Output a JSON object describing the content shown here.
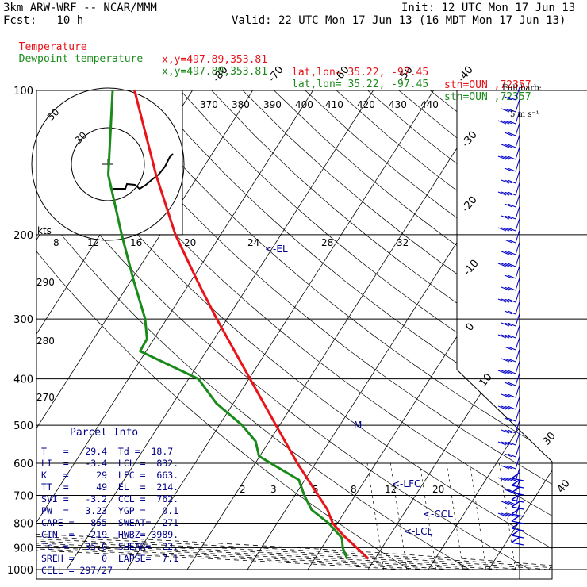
{
  "header": {
    "model": "3km ARW-WRF -- NCAR/MMM",
    "init": "Init: 12 UTC Mon 17 Jun 13",
    "fcst": "Fcst:   10 h",
    "valid": "Valid: 22 UTC Mon 17 Jun 13 (16 MDT Mon 17 Jun 13)",
    "line_temp": {
      "label": "Temperature",
      "xy": "x,y=497.89,353.81",
      "latlon": "lat,lon= 35.22, -97.45",
      "stn": "stn=OUN ,72357"
    },
    "line_dew": {
      "label": "Dewpoint temperature",
      "xy": "x,y=497.89,353.81",
      "latlon": "lat,lon= 35.22, -97.45",
      "stn": "stn=OUN ,72357"
    },
    "barb_note_1": "Full barb:",
    "barb_note_2": "5 m s⁻¹"
  },
  "colors": {
    "temperature": "#e8141a",
    "dewpoint": "#1a8a1a",
    "parcel_text": "#00008b",
    "barb": "#0000cc"
  },
  "chart_data": {
    "type": "line",
    "pressure_levels": [
      100,
      200,
      300,
      400,
      500,
      600,
      700,
      800,
      900,
      1000
    ],
    "pressure_labels": [
      "100",
      "200",
      "300",
      "400",
      "500",
      "600",
      "700",
      "800",
      "900",
      "1000"
    ],
    "isotherm_labels_top": [
      "-80",
      "-70",
      "-60",
      "-50",
      "-40"
    ],
    "isotherm_labels_right": [
      "-30",
      "-20",
      "-10",
      "0",
      "10",
      "30",
      "40"
    ],
    "theta_e_labels": [
      "370",
      "380",
      "390",
      "400",
      "410",
      "420",
      "430",
      "440"
    ],
    "hodo_speed_labels": [
      "8",
      "12",
      "16",
      "20",
      "24",
      "28",
      "32"
    ],
    "hodo_kts_label": "kts",
    "hodo_ring_labels": [
      "50",
      "30"
    ],
    "dry_adiabat_labels": [
      "290",
      "280",
      "270"
    ],
    "mixing_ratio_labels": [
      "2",
      "3",
      "5",
      "8",
      "12",
      "20"
    ],
    "level_markers": {
      "el": "<-EL",
      "lfc": "<-LFC",
      "ccl": "<-CCL",
      "lcl": "<-LCL",
      "m": "M"
    },
    "series": [
      {
        "name": "Temperature",
        "points": [
          [
            100,
            -67
          ],
          [
            150,
            -60
          ],
          [
            200,
            -53
          ],
          [
            250,
            -44
          ],
          [
            300,
            -36
          ],
          [
            400,
            -22
          ],
          [
            500,
            -11
          ],
          [
            600,
            -2
          ],
          [
            700,
            7
          ],
          [
            750,
            11
          ],
          [
            800,
            13
          ],
          [
            850,
            18
          ],
          [
            900,
            24
          ],
          [
            950,
            29.4
          ]
        ]
      },
      {
        "name": "Dewpoint temperature",
        "points": [
          [
            100,
            -78
          ],
          [
            150,
            -84
          ],
          [
            200,
            -80
          ],
          [
            250,
            -76
          ],
          [
            300,
            -72
          ],
          [
            330,
            -72
          ],
          [
            350,
            -76
          ],
          [
            400,
            -48
          ],
          [
            450,
            -40
          ],
          [
            500,
            -28
          ],
          [
            540,
            -22
          ],
          [
            580,
            -21
          ],
          [
            650,
            -2
          ],
          [
            700,
            0
          ],
          [
            750,
            3
          ],
          [
            800,
            11
          ],
          [
            860,
            17
          ],
          [
            900,
            17
          ],
          [
            950,
            18.7
          ]
        ]
      }
    ]
  },
  "parcel_info": {
    "title": "Parcel Info",
    "rows": [
      "T   =   29.4  Td =  18.7",
      "LI  =   -3.4  LCL =  832.",
      "K   =     29  LFC =  663.",
      "TT  =     49  EL  =  214.",
      "SVI =   -3.2  CCL =  762.",
      "PW  =   3.23  YGP =   0.1",
      "CAPE =   855  SWEAT=  271",
      "CIN  =  -219  HWBZ= 3989.",
      "Tc  =   35.0  SHEAR=  22.",
      "SREH =     0  LAPSE=  7.1",
      "CELL = 297/27"
    ]
  }
}
